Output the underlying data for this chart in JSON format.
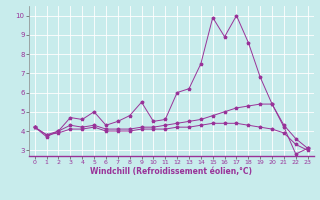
{
  "title": "",
  "xlabel": "Windchill (Refroidissement éolien,°C)",
  "background_color": "#c8ecec",
  "line_color": "#993399",
  "grid_color": "#aadddd",
  "xlim": [
    -0.5,
    23.5
  ],
  "ylim": [
    2.7,
    10.5
  ],
  "yticks": [
    3,
    4,
    5,
    6,
    7,
    8,
    9,
    10
  ],
  "xticks": [
    0,
    1,
    2,
    3,
    4,
    5,
    6,
    7,
    8,
    9,
    10,
    11,
    12,
    13,
    14,
    15,
    16,
    17,
    18,
    19,
    20,
    21,
    22,
    23
  ],
  "series": [
    [
      4.2,
      3.7,
      4.0,
      4.7,
      4.6,
      5.0,
      4.3,
      4.5,
      4.8,
      5.5,
      4.5,
      4.6,
      6.0,
      6.2,
      7.5,
      9.9,
      8.9,
      10.0,
      8.6,
      6.8,
      5.4,
      4.2,
      2.8,
      3.1
    ],
    [
      4.2,
      3.8,
      4.0,
      4.3,
      4.2,
      4.3,
      4.1,
      4.1,
      4.1,
      4.2,
      4.2,
      4.3,
      4.4,
      4.5,
      4.6,
      4.8,
      5.0,
      5.2,
      5.3,
      5.4,
      5.4,
      4.3,
      3.6,
      3.1
    ],
    [
      4.2,
      3.8,
      3.9,
      4.1,
      4.1,
      4.2,
      4.0,
      4.0,
      4.0,
      4.1,
      4.1,
      4.1,
      4.2,
      4.2,
      4.3,
      4.4,
      4.4,
      4.4,
      4.3,
      4.2,
      4.1,
      3.9,
      3.3,
      3.0
    ]
  ]
}
